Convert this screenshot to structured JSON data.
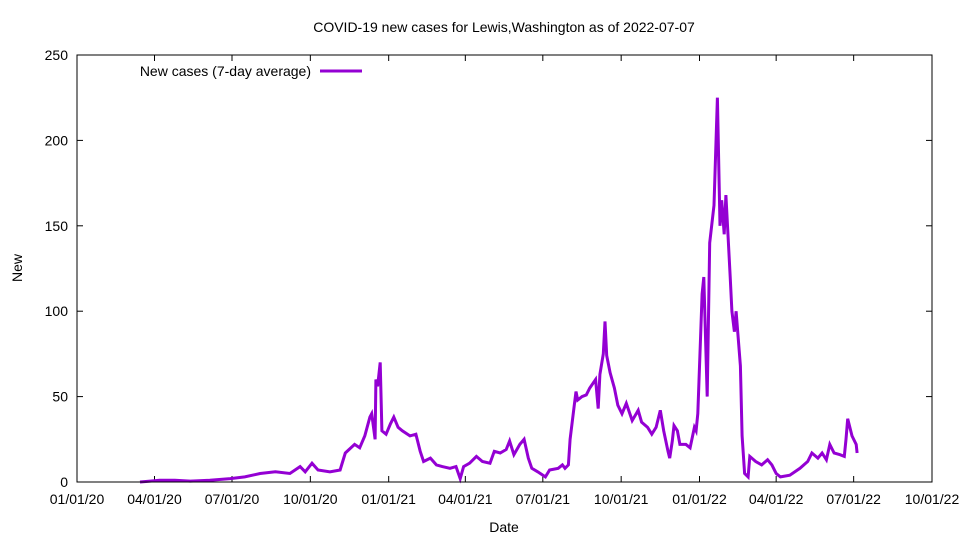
{
  "chart_data": {
    "type": "line",
    "title": "COVID-19 new cases for Lewis,Washington as of 2022-07-07",
    "xlabel": "Date",
    "ylabel": "New",
    "x_units": "days since 2020-01-01",
    "xlim": [
      0,
      1004
    ],
    "ylim": [
      0,
      250
    ],
    "yticks": [
      0,
      50,
      100,
      150,
      200,
      250
    ],
    "xticks": [
      {
        "day": 0,
        "label": "01/01/20"
      },
      {
        "day": 91,
        "label": "04/01/20"
      },
      {
        "day": 182,
        "label": "07/01/20"
      },
      {
        "day": 274,
        "label": "10/01/20"
      },
      {
        "day": 366,
        "label": "01/01/21"
      },
      {
        "day": 456,
        "label": "04/01/21"
      },
      {
        "day": 547,
        "label": "07/01/21"
      },
      {
        "day": 639,
        "label": "10/01/21"
      },
      {
        "day": 731,
        "label": "01/01/22"
      },
      {
        "day": 821,
        "label": "04/01/22"
      },
      {
        "day": 912,
        "label": "07/01/22"
      },
      {
        "day": 1004,
        "label": "10/01/22"
      }
    ],
    "legend_position": "top-left",
    "series": [
      {
        "name": "New cases (7-day average)",
        "color": "#9400d3",
        "points": [
          [
            74,
            0
          ],
          [
            86,
            0.5
          ],
          [
            97,
            1
          ],
          [
            115,
            1
          ],
          [
            133,
            0.5
          ],
          [
            156,
            1
          ],
          [
            180,
            2
          ],
          [
            197,
            3
          ],
          [
            215,
            5
          ],
          [
            233,
            6
          ],
          [
            250,
            5
          ],
          [
            262,
            9
          ],
          [
            268,
            6
          ],
          [
            276,
            11
          ],
          [
            283,
            7
          ],
          [
            297,
            6
          ],
          [
            309,
            7
          ],
          [
            315,
            17
          ],
          [
            326,
            22
          ],
          [
            332,
            20
          ],
          [
            338,
            27
          ],
          [
            344,
            38
          ],
          [
            346,
            40
          ],
          [
            350,
            25
          ],
          [
            351,
            60
          ],
          [
            353,
            56
          ],
          [
            356,
            70
          ],
          [
            358,
            30
          ],
          [
            363,
            28
          ],
          [
            368,
            34
          ],
          [
            372,
            38
          ],
          [
            377,
            32
          ],
          [
            382,
            30
          ],
          [
            391,
            27
          ],
          [
            398,
            28
          ],
          [
            403,
            18
          ],
          [
            407,
            12
          ],
          [
            415,
            14
          ],
          [
            422,
            10
          ],
          [
            429,
            9
          ],
          [
            438,
            8
          ],
          [
            445,
            9
          ],
          [
            450,
            2
          ],
          [
            454,
            9
          ],
          [
            461,
            11
          ],
          [
            469,
            15
          ],
          [
            476,
            12
          ],
          [
            485,
            11
          ],
          [
            490,
            18
          ],
          [
            497,
            17
          ],
          [
            504,
            19
          ],
          [
            508,
            24
          ],
          [
            513,
            16
          ],
          [
            520,
            22
          ],
          [
            525,
            25
          ],
          [
            530,
            14
          ],
          [
            534,
            8
          ],
          [
            541,
            6
          ],
          [
            550,
            3
          ],
          [
            555,
            7
          ],
          [
            565,
            8
          ],
          [
            570,
            10
          ],
          [
            573,
            8
          ],
          [
            577,
            10
          ],
          [
            579,
            25
          ],
          [
            584,
            45
          ],
          [
            586,
            53
          ],
          [
            588,
            48
          ],
          [
            593,
            50
          ],
          [
            598,
            51
          ],
          [
            602,
            55
          ],
          [
            609,
            60
          ],
          [
            612,
            43
          ],
          [
            614,
            63
          ],
          [
            618,
            75
          ],
          [
            620,
            94
          ],
          [
            622,
            74
          ],
          [
            626,
            64
          ],
          [
            631,
            55
          ],
          [
            635,
            45
          ],
          [
            640,
            40
          ],
          [
            645,
            46
          ],
          [
            652,
            36
          ],
          [
            659,
            42
          ],
          [
            663,
            35
          ],
          [
            670,
            32
          ],
          [
            675,
            28
          ],
          [
            680,
            32
          ],
          [
            685,
            42
          ],
          [
            689,
            30
          ],
          [
            694,
            18
          ],
          [
            696,
            14
          ],
          [
            699,
            24
          ],
          [
            701,
            33
          ],
          [
            705,
            30
          ],
          [
            708,
            22
          ],
          [
            715,
            22
          ],
          [
            720,
            20
          ],
          [
            722,
            25
          ],
          [
            725,
            32
          ],
          [
            727,
            30
          ],
          [
            729,
            40
          ],
          [
            732,
            82
          ],
          [
            734,
            110
          ],
          [
            736,
            120
          ],
          [
            740,
            50
          ],
          [
            743,
            140
          ],
          [
            748,
            162
          ],
          [
            752,
            225
          ],
          [
            755,
            150
          ],
          [
            757,
            165
          ],
          [
            760,
            145
          ],
          [
            762,
            168
          ],
          [
            767,
            120
          ],
          [
            769,
            100
          ],
          [
            772,
            88
          ],
          [
            774,
            100
          ],
          [
            779,
            68
          ],
          [
            781,
            27
          ],
          [
            784,
            5
          ],
          [
            788,
            3
          ],
          [
            790,
            15
          ],
          [
            797,
            12
          ],
          [
            804,
            10
          ],
          [
            811,
            13
          ],
          [
            816,
            10
          ],
          [
            821,
            5
          ],
          [
            826,
            3
          ],
          [
            837,
            4
          ],
          [
            849,
            8
          ],
          [
            858,
            12
          ],
          [
            863,
            17
          ],
          [
            870,
            14
          ],
          [
            875,
            17
          ],
          [
            880,
            13
          ],
          [
            884,
            22
          ],
          [
            889,
            17
          ],
          [
            896,
            16
          ],
          [
            901,
            15
          ],
          [
            903,
            25
          ],
          [
            905,
            37
          ],
          [
            910,
            27
          ],
          [
            915,
            22
          ],
          [
            916,
            17
          ]
        ]
      }
    ]
  }
}
